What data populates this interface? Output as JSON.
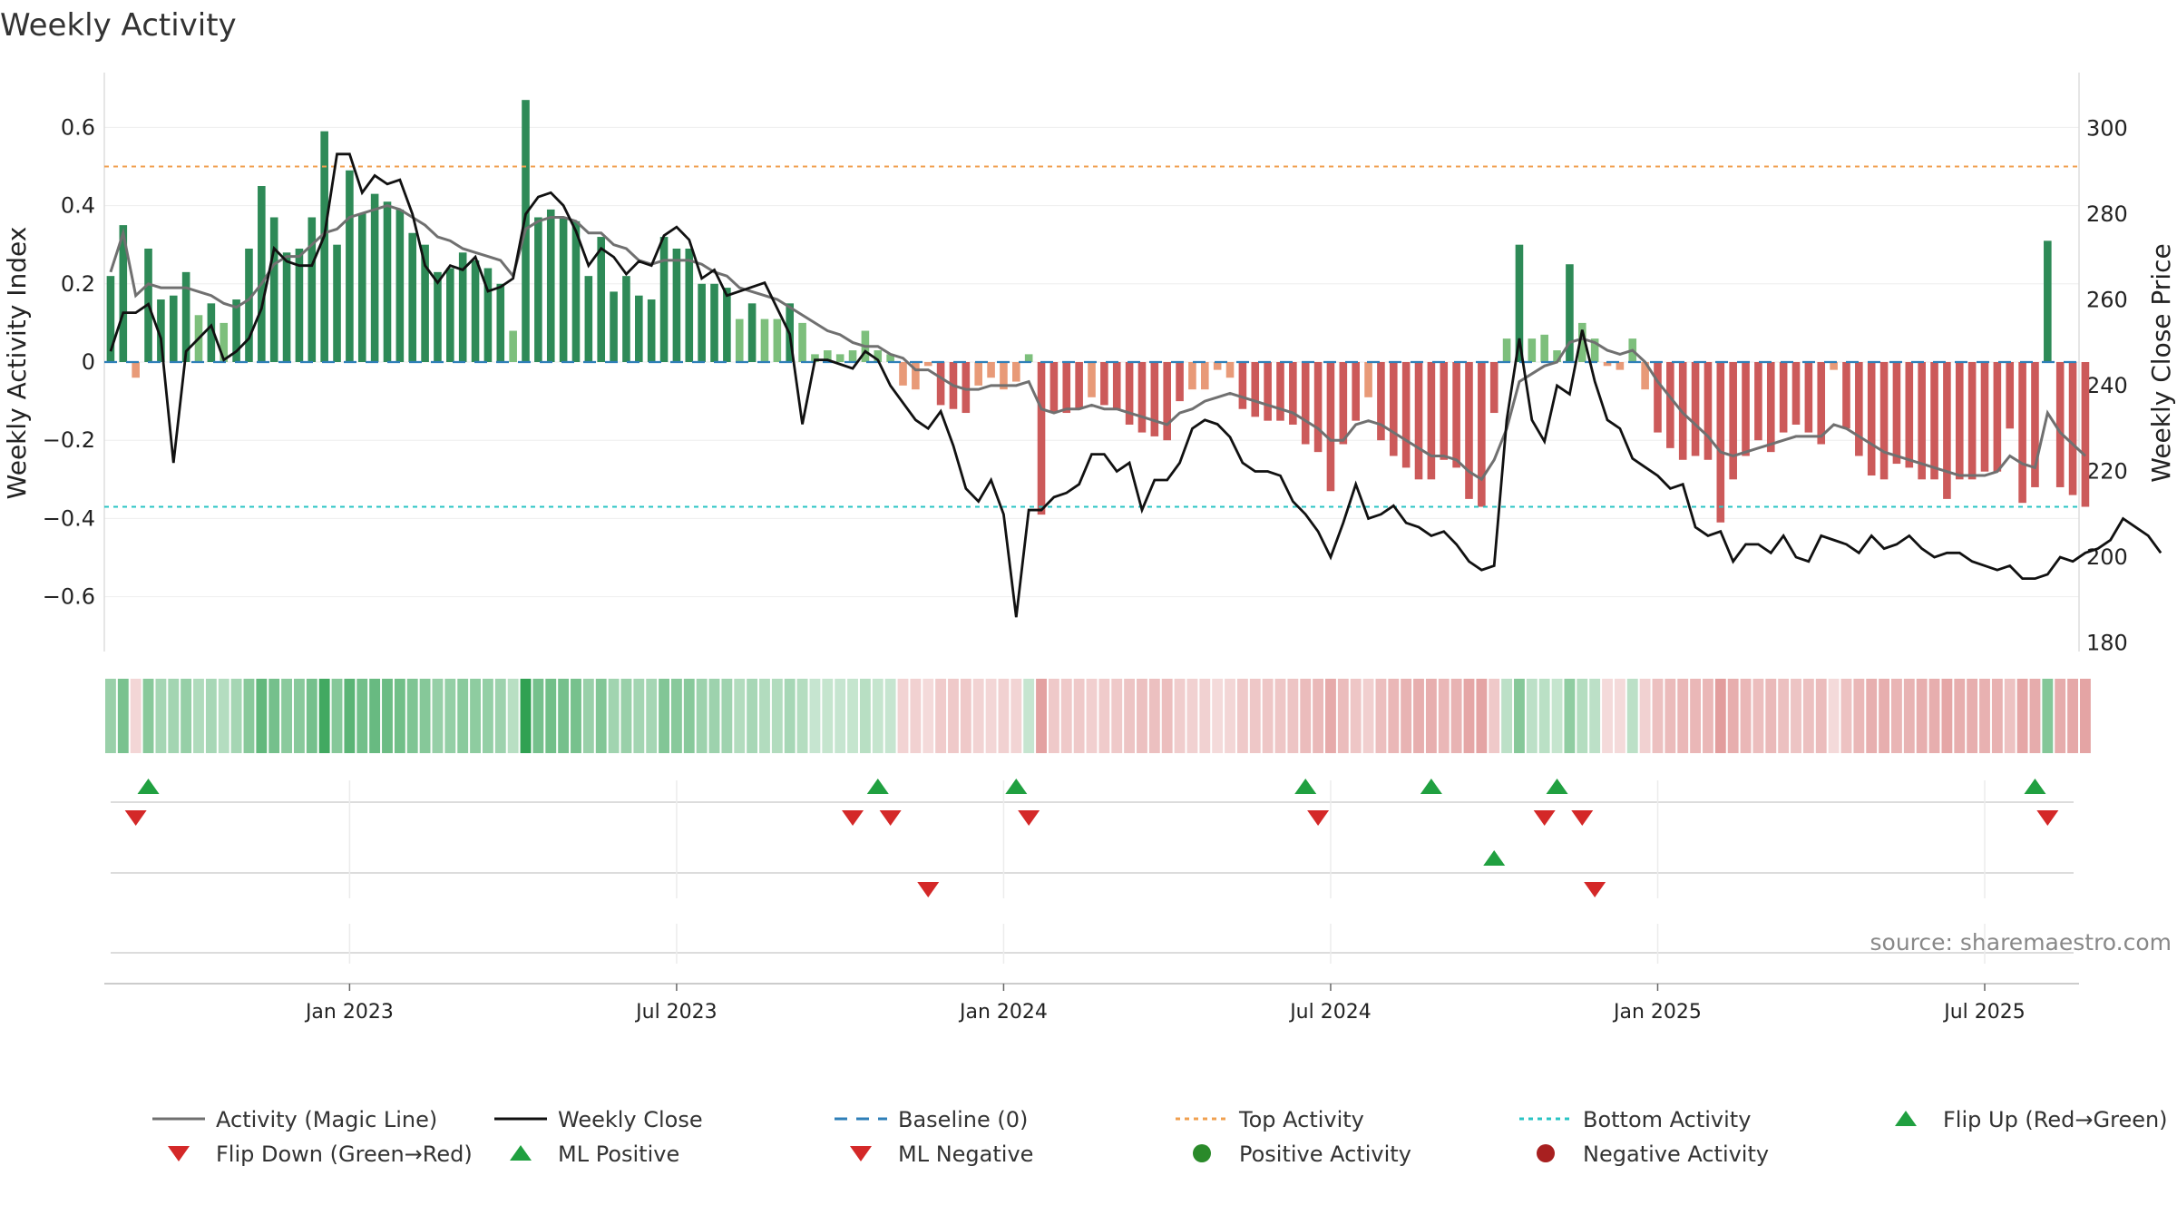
{
  "chart_data": {
    "type": "bar",
    "title": "Weekly Activity",
    "ylabel_left": "Weekly Activity Index",
    "ylabel_right": "Weekly Close Price",
    "ylim_left": [
      -0.74,
      0.74
    ],
    "ylim_right": [
      178,
      313
    ],
    "yticks_left": [
      {
        "v": 0.6,
        "label": "0.6"
      },
      {
        "v": 0.4,
        "label": "0.4"
      },
      {
        "v": 0.2,
        "label": "0.2"
      },
      {
        "v": 0,
        "label": "0"
      },
      {
        "v": -0.2,
        "label": "−0.2"
      },
      {
        "v": -0.4,
        "label": "−0.4"
      },
      {
        "v": -0.6,
        "label": "−0.6"
      }
    ],
    "yticks_right": [
      {
        "v": 300,
        "label": "300"
      },
      {
        "v": 280,
        "label": "280"
      },
      {
        "v": 260,
        "label": "260"
      },
      {
        "v": 240,
        "label": "240"
      },
      {
        "v": 220,
        "label": "220"
      },
      {
        "v": 200,
        "label": "200"
      },
      {
        "v": 180,
        "label": "180"
      }
    ],
    "xticks": [
      {
        "week": 19,
        "label": "Jan 2023"
      },
      {
        "week": 45,
        "label": "Jul 2023"
      },
      {
        "week": 71,
        "label": "Jan 2024"
      },
      {
        "week": 97,
        "label": "Jul 2024"
      },
      {
        "week": 123,
        "label": "Jan 2025"
      },
      {
        "week": 149,
        "label": "Jul 2025"
      }
    ],
    "week_count": 157,
    "top_activity": 0.5,
    "bottom_activity": -0.37,
    "baseline": 0,
    "colors": {
      "strong_green": "#2e8a57",
      "light_green": "#7dbf7c",
      "strong_red": "#cc5a5a",
      "light_red": "#e89a78",
      "magic_line": "#707070",
      "close_line": "#111111",
      "top_line": "#f0a050",
      "bottom_line": "#2ac4c4",
      "baseline": "#2f7fb8",
      "flip_up": "#20a040",
      "flip_down": "#d42828"
    },
    "activity": [
      0.22,
      0.35,
      -0.04,
      0.29,
      0.16,
      0.17,
      0.23,
      0.12,
      0.15,
      0.1,
      0.16,
      0.29,
      0.45,
      0.37,
      0.28,
      0.29,
      0.37,
      0.59,
      0.3,
      0.49,
      0.38,
      0.43,
      0.41,
      0.39,
      0.33,
      0.3,
      0.23,
      0.24,
      0.28,
      0.26,
      0.24,
      0.2,
      0.08,
      0.67,
      0.37,
      0.39,
      0.37,
      0.36,
      0.22,
      0.32,
      0.18,
      0.22,
      0.17,
      0.16,
      0.32,
      0.29,
      0.29,
      0.2,
      0.2,
      0.19,
      0.11,
      0.15,
      0.11,
      0.11,
      0.15,
      0.1,
      0.02,
      0.03,
      0.02,
      0.03,
      0.08,
      0.03,
      0.02,
      -0.06,
      -0.07,
      -0.01,
      -0.11,
      -0.12,
      -0.13,
      -0.06,
      -0.04,
      -0.07,
      -0.05,
      0.02,
      -0.39,
      -0.13,
      -0.13,
      -0.12,
      -0.09,
      -0.11,
      -0.12,
      -0.16,
      -0.18,
      -0.19,
      -0.2,
      -0.1,
      -0.07,
      -0.07,
      -0.02,
      -0.04,
      -0.12,
      -0.14,
      -0.15,
      -0.15,
      -0.16,
      -0.21,
      -0.23,
      -0.33,
      -0.21,
      -0.15,
      -0.09,
      -0.2,
      -0.24,
      -0.27,
      -0.3,
      -0.3,
      -0.25,
      -0.27,
      -0.35,
      -0.37,
      -0.13,
      0.06,
      0.3,
      0.06,
      0.07,
      0.03,
      0.25,
      0.1,
      0.06,
      -0.01,
      -0.02,
      0.06,
      -0.07,
      -0.18,
      -0.22,
      -0.25,
      -0.24,
      -0.25,
      -0.41,
      -0.3,
      -0.24,
      -0.2,
      -0.23,
      -0.18,
      -0.16,
      -0.18,
      -0.21,
      -0.02,
      -0.17,
      -0.24,
      -0.29,
      -0.3,
      -0.26,
      -0.27,
      -0.3,
      -0.3,
      -0.35,
      -0.3,
      -0.3,
      -0.28,
      -0.28,
      -0.17,
      -0.36,
      -0.32,
      0.31,
      -0.32,
      -0.34,
      -0.37
    ],
    "magic_line": [
      0.23,
      0.33,
      0.17,
      0.2,
      0.19,
      0.19,
      0.19,
      0.18,
      0.17,
      0.15,
      0.14,
      0.16,
      0.2,
      0.25,
      0.27,
      0.27,
      0.3,
      0.33,
      0.34,
      0.37,
      0.38,
      0.39,
      0.4,
      0.39,
      0.37,
      0.35,
      0.32,
      0.31,
      0.29,
      0.28,
      0.27,
      0.26,
      0.22,
      0.34,
      0.36,
      0.37,
      0.37,
      0.36,
      0.33,
      0.33,
      0.3,
      0.29,
      0.26,
      0.25,
      0.26,
      0.26,
      0.26,
      0.25,
      0.23,
      0.22,
      0.19,
      0.18,
      0.17,
      0.16,
      0.14,
      0.12,
      0.1,
      0.08,
      0.07,
      0.05,
      0.04,
      0.04,
      0.02,
      0.01,
      -0.02,
      -0.02,
      -0.04,
      -0.06,
      -0.07,
      -0.07,
      -0.06,
      -0.06,
      -0.06,
      -0.05,
      -0.12,
      -0.13,
      -0.12,
      -0.12,
      -0.11,
      -0.12,
      -0.12,
      -0.13,
      -0.14,
      -0.15,
      -0.16,
      -0.13,
      -0.12,
      -0.1,
      -0.09,
      -0.08,
      -0.09,
      -0.1,
      -0.11,
      -0.12,
      -0.13,
      -0.15,
      -0.17,
      -0.2,
      -0.2,
      -0.16,
      -0.15,
      -0.16,
      -0.18,
      -0.2,
      -0.22,
      -0.24,
      -0.24,
      -0.25,
      -0.28,
      -0.3,
      -0.25,
      -0.17,
      -0.05,
      -0.03,
      -0.01,
      0.0,
      0.05,
      0.06,
      0.05,
      0.03,
      0.02,
      0.03,
      0.0,
      -0.05,
      -0.09,
      -0.13,
      -0.16,
      -0.19,
      -0.23,
      -0.24,
      -0.23,
      -0.22,
      -0.21,
      -0.2,
      -0.19,
      -0.19,
      -0.19,
      -0.16,
      -0.17,
      -0.19,
      -0.21,
      -0.23,
      -0.24,
      -0.25,
      -0.26,
      -0.27,
      -0.28,
      -0.29,
      -0.29,
      -0.29,
      -0.28,
      -0.24,
      -0.26,
      -0.27,
      -0.13,
      -0.18,
      -0.21,
      -0.24
    ],
    "weekly_close": [
      248,
      257,
      257,
      259,
      251,
      222,
      248,
      251,
      254,
      246,
      248,
      251,
      258,
      272,
      269,
      268,
      268,
      275,
      294,
      294,
      285,
      289,
      287,
      288,
      280,
      268,
      264,
      268,
      267,
      270,
      262,
      263,
      265,
      280,
      284,
      285,
      282,
      276,
      268,
      272,
      270,
      266,
      269,
      268,
      275,
      277,
      274,
      265,
      267,
      261,
      262,
      263,
      264,
      258,
      252,
      231,
      246,
      246,
      245,
      244,
      248,
      246,
      240,
      236,
      232,
      230,
      234,
      226,
      216,
      213,
      218,
      210,
      186,
      211,
      211,
      214,
      215,
      217,
      224,
      224,
      220,
      222,
      211,
      218,
      218,
      222,
      230,
      232,
      231,
      228,
      222,
      220,
      220,
      219,
      213,
      210,
      206,
      200,
      208,
      217,
      209,
      210,
      212,
      208,
      207,
      205,
      206,
      203,
      199,
      197,
      198,
      232,
      251,
      232,
      227,
      240,
      238,
      253,
      241,
      232,
      230,
      223,
      221,
      219,
      216,
      217,
      207,
      205,
      206,
      199,
      203,
      203,
      201,
      205,
      200,
      199,
      205,
      204,
      203,
      201,
      205,
      202,
      203,
      205,
      202,
      200,
      201,
      201,
      199,
      198,
      197,
      198,
      195,
      195,
      196,
      200,
      199,
      201,
      202,
      204,
      209,
      207,
      205,
      201
    ]
  },
  "signal_rows": {
    "row1_flip_up": [
      3,
      61,
      72,
      95,
      105,
      115,
      153
    ],
    "row1_flip_down": [
      2,
      59,
      62,
      73,
      96,
      114,
      117,
      154
    ],
    "row2_ml_positive": [
      110
    ],
    "row2_ml_negative": [
      65,
      118
    ]
  },
  "watermark": "source: sharemaestro.com",
  "legend": [
    {
      "label": "Activity (Magic Line)",
      "kind": "line",
      "color": "#707070",
      "dash": ""
    },
    {
      "label": "Weekly Close",
      "kind": "line",
      "color": "#111111",
      "dash": ""
    },
    {
      "label": "Baseline (0)",
      "kind": "line",
      "color": "#2f7fb8",
      "dash": "14,10"
    },
    {
      "label": "Top Activity",
      "kind": "line",
      "color": "#f0a050",
      "dash": "5,5"
    },
    {
      "label": "Bottom Activity",
      "kind": "line",
      "color": "#2ac4c4",
      "dash": "5,5"
    },
    {
      "label": "Flip Up (Red→Green)",
      "kind": "tri-up",
      "color": "#20a040",
      "dash": ""
    },
    {
      "label": "Flip Down (Green→Red)",
      "kind": "tri-down",
      "color": "#d42828",
      "dash": ""
    },
    {
      "label": "ML Positive",
      "kind": "tri-up",
      "color": "#20a040",
      "dash": ""
    },
    {
      "label": "ML Negative",
      "kind": "tri-down",
      "color": "#d42828",
      "dash": ""
    },
    {
      "label": "Positive Activity",
      "kind": "dot",
      "color": "#2a8a2a",
      "dash": ""
    },
    {
      "label": "Negative Activity",
      "kind": "dot",
      "color": "#a82020",
      "dash": ""
    }
  ]
}
